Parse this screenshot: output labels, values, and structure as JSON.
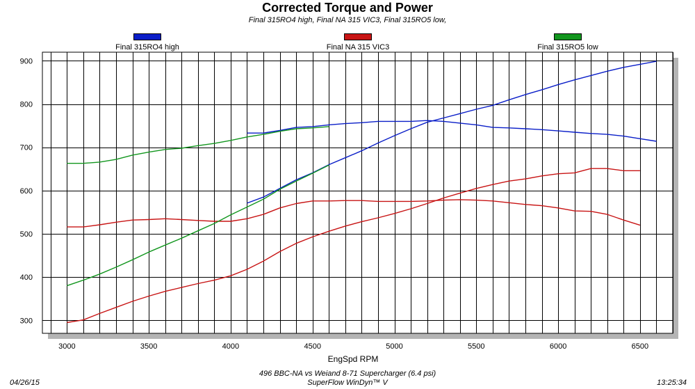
{
  "chart_data": {
    "type": "line",
    "title": "Corrected Torque and Power",
    "subtitle": "Final 315RO4 high, Final NA 315 VIC3, Final 315RO5 low,",
    "xlabel": "EngSpd  RPM",
    "ylabel": "",
    "xlim": [
      2850,
      6700
    ],
    "ylim": [
      270,
      920
    ],
    "x_ticks": [
      3000,
      3500,
      4000,
      4500,
      5000,
      5500,
      6000,
      6500
    ],
    "y_ticks": [
      300,
      400,
      500,
      600,
      700,
      800,
      900
    ],
    "x_grid_step": 100,
    "y_grid_step": 100,
    "grid": true,
    "series": [
      {
        "name": "Final 315RO4 high",
        "color": "#0a1ec8",
        "metric": "torque",
        "x": [
          4100,
          4200,
          4300,
          4400,
          4500,
          4600,
          4700,
          4800,
          4900,
          5000,
          5100,
          5200,
          5300,
          5400,
          5500,
          5600,
          5700,
          5800,
          5900,
          6000,
          6100,
          6200,
          6300,
          6400,
          6500,
          6600
        ],
        "values": [
          733,
          733,
          739,
          746,
          748,
          752,
          755,
          757,
          760,
          760,
          760,
          762,
          760,
          756,
          752,
          746,
          745,
          743,
          741,
          738,
          735,
          732,
          730,
          726,
          720,
          714
        ]
      },
      {
        "name": "Final 315RO4 high",
        "color": "#0a1ec8",
        "metric": "power",
        "x": [
          4100,
          4200,
          4300,
          4400,
          4500,
          4600,
          4700,
          4800,
          4900,
          5000,
          5100,
          5200,
          5300,
          5400,
          5500,
          5600,
          5700,
          5800,
          5900,
          6000,
          6100,
          6200,
          6300,
          6400,
          6500,
          6600
        ],
        "values": [
          571,
          585,
          605,
          625,
          641,
          660,
          676,
          692,
          710,
          727,
          743,
          758,
          768,
          778,
          788,
          797,
          810,
          822,
          833,
          845,
          856,
          866,
          876,
          885,
          892,
          899
        ]
      },
      {
        "name": "Final NA 315 VIC3",
        "color": "#c81414",
        "metric": "torque",
        "x": [
          3000,
          3100,
          3200,
          3300,
          3400,
          3500,
          3600,
          3700,
          3800,
          3900,
          4000,
          4100,
          4200,
          4300,
          4400,
          4500,
          4600,
          4700,
          4800,
          4900,
          5000,
          5100,
          5200,
          5300,
          5400,
          5500,
          5600,
          5700,
          5800,
          5900,
          6000,
          6100,
          6200,
          6300,
          6400,
          6500
        ],
        "values": [
          516,
          516,
          521,
          527,
          532,
          533,
          535,
          533,
          531,
          529,
          529,
          535,
          545,
          560,
          570,
          576,
          576,
          577,
          577,
          575,
          575,
          575,
          576,
          578,
          579,
          578,
          576,
          572,
          568,
          565,
          560,
          553,
          552,
          545,
          532,
          520
        ]
      },
      {
        "name": "Final NA 315 VIC3",
        "color": "#c81414",
        "metric": "power",
        "x": [
          3000,
          3100,
          3200,
          3300,
          3400,
          3500,
          3600,
          3700,
          3800,
          3900,
          4000,
          4100,
          4200,
          4300,
          4400,
          4500,
          4600,
          4700,
          4800,
          4900,
          5000,
          5100,
          5200,
          5300,
          5400,
          5500,
          5600,
          5700,
          5800,
          5900,
          6000,
          6100,
          6200,
          6300,
          6400,
          6500
        ],
        "values": [
          295,
          301,
          316,
          330,
          344,
          356,
          367,
          376,
          385,
          393,
          403,
          418,
          437,
          459,
          478,
          493,
          506,
          518,
          528,
          537,
          547,
          558,
          570,
          583,
          594,
          605,
          614,
          622,
          627,
          634,
          639,
          641,
          651,
          651,
          646,
          646
        ]
      },
      {
        "name": "Final 315RO5 low",
        "color": "#12961e",
        "metric": "torque",
        "x": [
          3000,
          3100,
          3200,
          3300,
          3400,
          3500,
          3600,
          3700,
          3800,
          3900,
          4000,
          4100,
          4200,
          4300,
          4400,
          4500,
          4600
        ],
        "values": [
          663,
          663,
          666,
          672,
          682,
          689,
          695,
          698,
          704,
          709,
          716,
          724,
          730,
          737,
          743,
          745,
          748
        ]
      },
      {
        "name": "Final 315RO5 low",
        "color": "#12961e",
        "metric": "power",
        "x": [
          3000,
          3100,
          3200,
          3300,
          3400,
          3500,
          3600,
          3700,
          3800,
          3900,
          4000,
          4100,
          4200,
          4300,
          4400,
          4500,
          4600
        ],
        "values": [
          380,
          393,
          407,
          423,
          440,
          458,
          474,
          490,
          507,
          524,
          544,
          562,
          580,
          603,
          622,
          640,
          659
        ]
      }
    ],
    "legend": [
      {
        "label": "Final 315RO4 high",
        "color": "#0a1ec8"
      },
      {
        "label": "Final NA 315 VIC3",
        "color": "#c81414"
      },
      {
        "label": "Final 315RO5 low",
        "color": "#12961e"
      }
    ],
    "legend_position": "top"
  },
  "footer": {
    "date": "04/26/15",
    "time": "13:25:34",
    "caption_line1": "496 BBC-NA vs Weiand 8-71 Supercharger (6.4 psi)",
    "caption_line2": "SuperFlow WinDyn™ V"
  }
}
